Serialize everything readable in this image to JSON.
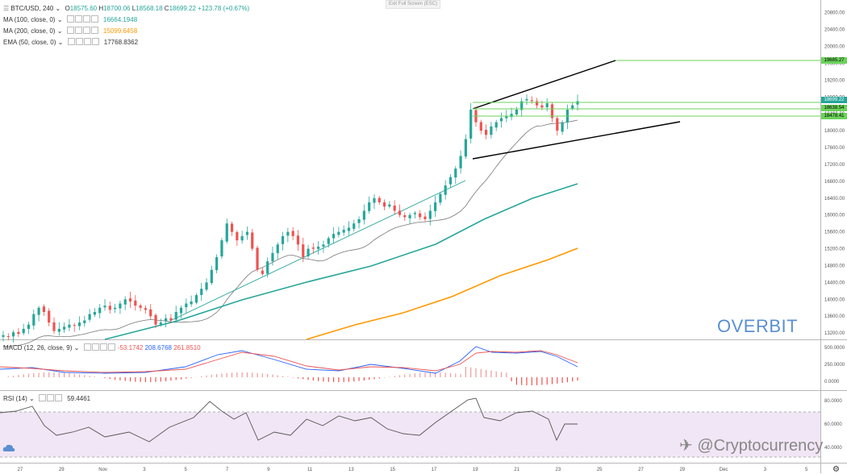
{
  "window": {
    "exit_label": "Exit Full Screen (ESC)"
  },
  "header": {
    "symbol": "BTC/USD, 240",
    "open": "18575.60",
    "high": "18700.06",
    "low": "18568.18",
    "close": "18699.22",
    "change": "+123.78 (+0.67%)"
  },
  "indicators": [
    {
      "label": "MA (100, close, 0)",
      "value": "16664.1948",
      "color": "#26a69a"
    },
    {
      "label": "MA (200, close, 0)",
      "value": "15099.6458",
      "color": "#ff9800"
    },
    {
      "label": "EMA (50, close, 0)",
      "value": "17768.8362",
      "color": "#333333"
    }
  ],
  "macd": {
    "label": "MACD (12, 26, close, 9)",
    "v1": "-53.1742",
    "v2": "208.6768",
    "v3": "261.8510",
    "c1": "#ef5350",
    "c2": "#2962ff",
    "c3": "#ef5350"
  },
  "rsi": {
    "label": "RSI (14)",
    "value": "59.4461"
  },
  "price_axis": [
    "20800.00",
    "20400.00",
    "20000.00",
    "19600.00",
    "19200.00",
    "18800.00",
    "18400.00",
    "18000.00",
    "17600.00",
    "17200.00",
    "16800.00",
    "16400.00",
    "16000.00",
    "15600.00",
    "15200.00",
    "14800.00",
    "14400.00",
    "14000.00",
    "13600.00",
    "13200.00"
  ],
  "price_tags": [
    "19685.27",
    "18699.22",
    "18638.54",
    "18478.41"
  ],
  "macd_axis": [
    "500.0000",
    "250.0000",
    "0.0000"
  ],
  "rsi_axis": [
    "80.0000",
    "60.0000",
    "40.0000"
  ],
  "time_axis": [
    "27",
    "29",
    "Nov",
    "3",
    "5",
    "7",
    "9",
    "11",
    "13",
    "15",
    "17",
    "19",
    "21",
    "23",
    "25",
    "27",
    "29",
    "Dec",
    "3",
    "5"
  ],
  "brand": "OVERBIT",
  "watermark": "@Cryptocurrency",
  "chart_data": {
    "type": "candlestick",
    "symbol": "BTC/USD",
    "timeframe": "240",
    "ylim": [
      13050,
      21100
    ],
    "last_close": 18699.22,
    "key_levels": [
      19685.27,
      18638.54,
      18478.41
    ],
    "indicators": {
      "MA100_last": 16664.1948,
      "MA200_last": 15099.6458,
      "EMA50_last": 17768.8362,
      "MACD_hist": -53.1742,
      "MACD": 208.6768,
      "MACD_signal": 261.851,
      "RSI14": 59.4461
    },
    "close_series": [
      13150,
      13120,
      13220,
      13180,
      13300,
      13400,
      13650,
      13800,
      13700,
      13450,
      13250,
      13300,
      13350,
      13400,
      13380,
      13450,
      13500,
      13650,
      13700,
      13800,
      13850,
      13750,
      13800,
      13900,
      14000,
      13950,
      13850,
      13800,
      13750,
      13600,
      13400,
      13450,
      13550,
      13500,
      13700,
      13800,
      13900,
      13950,
      14100,
      14250,
      14400,
      14700,
      15000,
      15400,
      15800,
      15600,
      15400,
      15500,
      15600,
      15200,
      14700,
      14600,
      14900,
      15100,
      15300,
      15500,
      15600,
      15500,
      15300,
      15000,
      15200,
      15200,
      15250,
      15300,
      15450,
      15550,
      15600,
      15650,
      15700,
      15800,
      15900,
      16100,
      16300,
      16400,
      16300,
      16200,
      16250,
      16100,
      16000,
      15950,
      16000,
      16050,
      15950,
      15900,
      16100,
      16300,
      16500,
      16700,
      16900,
      17100,
      17400,
      17800,
      18500,
      18200,
      18000,
      17900,
      18100,
      18200,
      18300,
      18350,
      18400,
      18500,
      18700,
      18750,
      18700,
      18600,
      18550,
      18650,
      18300,
      18000,
      18200,
      18500,
      18600,
      18699
    ]
  }
}
